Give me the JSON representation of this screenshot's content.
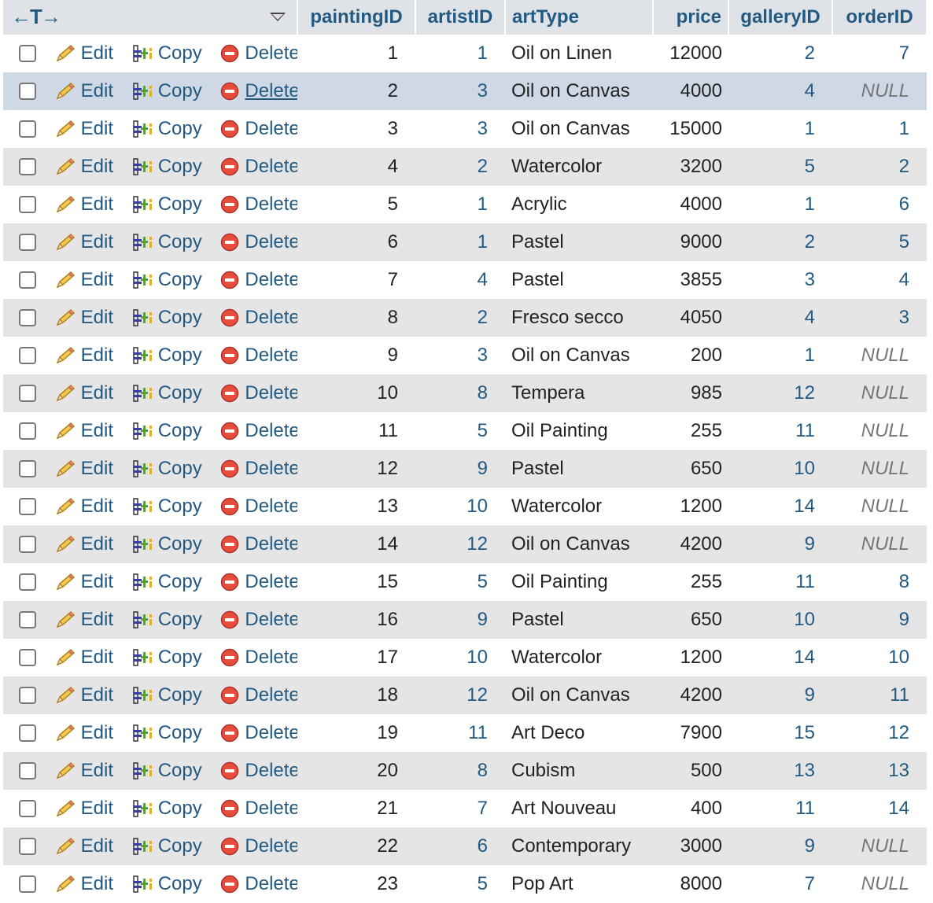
{
  "header": {
    "columns": [
      "paintingID",
      "artistID",
      "artType",
      "price",
      "galleryID",
      "orderID"
    ],
    "width_arrows": "←T→"
  },
  "actions": {
    "edit": "Edit",
    "copy": "Copy",
    "delete": "Delete"
  },
  "highlighted_row_index": 1,
  "colors": {
    "link": "#235a81",
    "header_bg": "#dfe3e8",
    "stripe_bg": "#e5e5e5",
    "highlight_bg": "#ced9e5"
  },
  "rows": [
    {
      "paintingID": "1",
      "artistID": "1",
      "artType": "Oil on Linen",
      "price": "12000",
      "galleryID": "2",
      "orderID": "7"
    },
    {
      "paintingID": "2",
      "artistID": "3",
      "artType": "Oil on Canvas",
      "price": "4000",
      "galleryID": "4",
      "orderID": "NULL"
    },
    {
      "paintingID": "3",
      "artistID": "3",
      "artType": "Oil on Canvas",
      "price": "15000",
      "galleryID": "1",
      "orderID": "1"
    },
    {
      "paintingID": "4",
      "artistID": "2",
      "artType": "Watercolor",
      "price": "3200",
      "galleryID": "5",
      "orderID": "2"
    },
    {
      "paintingID": "5",
      "artistID": "1",
      "artType": "Acrylic",
      "price": "4000",
      "galleryID": "1",
      "orderID": "6"
    },
    {
      "paintingID": "6",
      "artistID": "1",
      "artType": "Pastel",
      "price": "9000",
      "galleryID": "2",
      "orderID": "5"
    },
    {
      "paintingID": "7",
      "artistID": "4",
      "artType": "Pastel",
      "price": "3855",
      "galleryID": "3",
      "orderID": "4"
    },
    {
      "paintingID": "8",
      "artistID": "2",
      "artType": "Fresco secco",
      "price": "4050",
      "galleryID": "4",
      "orderID": "3"
    },
    {
      "paintingID": "9",
      "artistID": "3",
      "artType": "Oil on Canvas",
      "price": "200",
      "galleryID": "1",
      "orderID": "NULL"
    },
    {
      "paintingID": "10",
      "artistID": "8",
      "artType": "Tempera",
      "price": "985",
      "galleryID": "12",
      "orderID": "NULL"
    },
    {
      "paintingID": "11",
      "artistID": "5",
      "artType": "Oil Painting",
      "price": "255",
      "galleryID": "11",
      "orderID": "NULL"
    },
    {
      "paintingID": "12",
      "artistID": "9",
      "artType": "Pastel",
      "price": "650",
      "galleryID": "10",
      "orderID": "NULL"
    },
    {
      "paintingID": "13",
      "artistID": "10",
      "artType": "Watercolor",
      "price": "1200",
      "galleryID": "14",
      "orderID": "NULL"
    },
    {
      "paintingID": "14",
      "artistID": "12",
      "artType": "Oil on Canvas",
      "price": "4200",
      "galleryID": "9",
      "orderID": "NULL"
    },
    {
      "paintingID": "15",
      "artistID": "5",
      "artType": "Oil Painting",
      "price": "255",
      "galleryID": "11",
      "orderID": "8"
    },
    {
      "paintingID": "16",
      "artistID": "9",
      "artType": "Pastel",
      "price": "650",
      "galleryID": "10",
      "orderID": "9"
    },
    {
      "paintingID": "17",
      "artistID": "10",
      "artType": "Watercolor",
      "price": "1200",
      "galleryID": "14",
      "orderID": "10"
    },
    {
      "paintingID": "18",
      "artistID": "12",
      "artType": "Oil on Canvas",
      "price": "4200",
      "galleryID": "9",
      "orderID": "11"
    },
    {
      "paintingID": "19",
      "artistID": "11",
      "artType": "Art Deco",
      "price": "7900",
      "galleryID": "15",
      "orderID": "12"
    },
    {
      "paintingID": "20",
      "artistID": "8",
      "artType": "Cubism",
      "price": "500",
      "galleryID": "13",
      "orderID": "13"
    },
    {
      "paintingID": "21",
      "artistID": "7",
      "artType": "Art Nouveau",
      "price": "400",
      "galleryID": "11",
      "orderID": "14"
    },
    {
      "paintingID": "22",
      "artistID": "6",
      "artType": "Contemporary",
      "price": "3000",
      "galleryID": "9",
      "orderID": "NULL"
    },
    {
      "paintingID": "23",
      "artistID": "5",
      "artType": "Pop Art",
      "price": "8000",
      "galleryID": "7",
      "orderID": "NULL"
    }
  ]
}
